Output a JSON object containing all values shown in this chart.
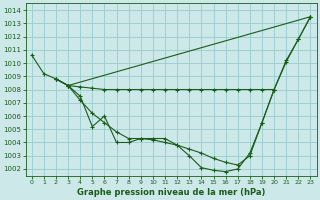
{
  "title": "Graphe pression niveau de la mer (hPa)",
  "bg_color": "#cce8e8",
  "grid_color": "#99cccc",
  "line_color": "#1a5c1a",
  "xlim": [
    -0.5,
    23.5
  ],
  "ylim": [
    1001.5,
    1014.5
  ],
  "yticks": [
    1002,
    1003,
    1004,
    1005,
    1006,
    1007,
    1008,
    1009,
    1010,
    1011,
    1012,
    1013,
    1014
  ],
  "xticks": [
    0,
    1,
    2,
    3,
    4,
    5,
    6,
    7,
    8,
    9,
    10,
    11,
    12,
    13,
    14,
    15,
    16,
    17,
    18,
    19,
    20,
    21,
    22,
    23
  ],
  "curves": [
    {
      "x": [
        0,
        1,
        2,
        3,
        23
      ],
      "y": [
        1010.6,
        1009.2,
        1008.8,
        1008.3,
        1013.5
      ]
    },
    {
      "x": [
        2,
        3,
        4,
        5,
        6,
        7,
        8,
        9,
        10,
        11,
        12,
        13,
        14,
        15,
        16,
        17,
        18,
        19,
        20
      ],
      "y": [
        1008.8,
        1008.3,
        1008.2,
        1008.1,
        1008.0,
        1008.0,
        1008.0,
        1008.0,
        1008.0,
        1008.0,
        1008.0,
        1008.0,
        1008.0,
        1008.0,
        1008.0,
        1008.0,
        1008.0,
        1008.0,
        1008.0
      ]
    },
    {
      "x": [
        2,
        3,
        4,
        5,
        6,
        7,
        8,
        9,
        10,
        11,
        12,
        13,
        14,
        15,
        16,
        17,
        18,
        19,
        20,
        21,
        22,
        23
      ],
      "y": [
        1008.8,
        1008.3,
        1007.2,
        1006.2,
        1005.5,
        1004.8,
        1004.3,
        1004.3,
        1004.2,
        1004.0,
        1003.8,
        1003.5,
        1003.2,
        1002.8,
        1002.5,
        1002.3,
        1003.0,
        1005.5,
        1008.0,
        1010.2,
        1011.8,
        1013.5
      ]
    },
    {
      "x": [
        2,
        3,
        4,
        5,
        6,
        7,
        8,
        9,
        10,
        11,
        12,
        13,
        14,
        15,
        16,
        17,
        18,
        19,
        20,
        21,
        22,
        23
      ],
      "y": [
        1008.8,
        1008.3,
        1007.5,
        1005.2,
        1006.0,
        1004.0,
        1004.0,
        1004.3,
        1004.3,
        1004.3,
        1003.8,
        1003.0,
        1002.1,
        1001.9,
        1001.8,
        1002.0,
        1003.2,
        1005.5,
        1008.0,
        1010.1,
        1011.8,
        1013.5
      ]
    }
  ]
}
